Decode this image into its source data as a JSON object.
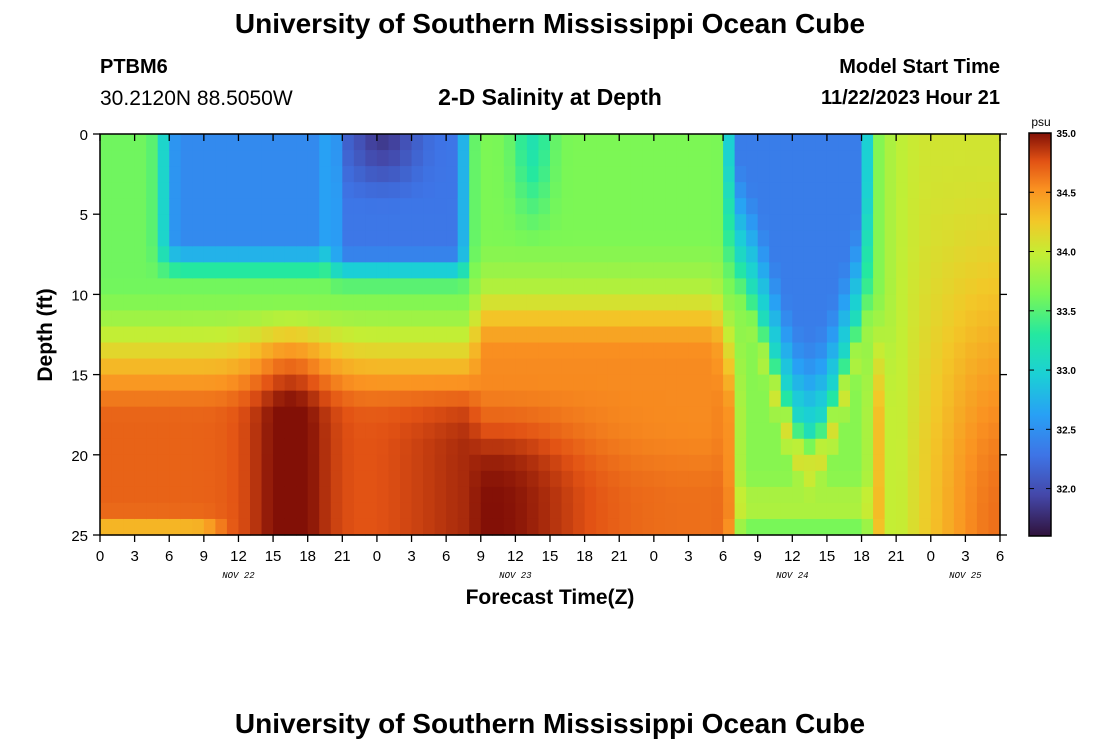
{
  "header": {
    "title": "University of Southern Mississippi Ocean Cube",
    "station_id": "PTBM6",
    "station_coords": "30.2120N  88.5050W",
    "subtitle": "2-D Salinity at Depth",
    "model_start_label": "Model Start Time",
    "model_start_value": "11/22/2023 Hour 21"
  },
  "footer": {
    "title": "University of Southern Mississippi Ocean Cube"
  },
  "chart_data": {
    "type": "heatmap",
    "title": "2-D Salinity at Depth",
    "xlabel": "Forecast Time(Z)",
    "ylabel": "Depth (ft)",
    "x_unit": "hours from 00Z Nov 22",
    "xlim": [
      0,
      78
    ],
    "ylim": [
      0,
      25
    ],
    "y_inverted": true,
    "x_ticks": [
      {
        "t": 0,
        "label": "0"
      },
      {
        "t": 3,
        "label": "3"
      },
      {
        "t": 6,
        "label": "6"
      },
      {
        "t": 9,
        "label": "9"
      },
      {
        "t": 12,
        "label": "12"
      },
      {
        "t": 15,
        "label": "15"
      },
      {
        "t": 18,
        "label": "18"
      },
      {
        "t": 21,
        "label": "21"
      },
      {
        "t": 24,
        "label": "0"
      },
      {
        "t": 27,
        "label": "3"
      },
      {
        "t": 30,
        "label": "6"
      },
      {
        "t": 33,
        "label": "9"
      },
      {
        "t": 36,
        "label": "12"
      },
      {
        "t": 39,
        "label": "15"
      },
      {
        "t": 42,
        "label": "18"
      },
      {
        "t": 45,
        "label": "21"
      },
      {
        "t": 48,
        "label": "0"
      },
      {
        "t": 51,
        "label": "3"
      },
      {
        "t": 54,
        "label": "6"
      },
      {
        "t": 57,
        "label": "9"
      },
      {
        "t": 60,
        "label": "12"
      },
      {
        "t": 63,
        "label": "15"
      },
      {
        "t": 66,
        "label": "18"
      },
      {
        "t": 69,
        "label": "21"
      },
      {
        "t": 72,
        "label": "0"
      },
      {
        "t": 75,
        "label": "3"
      },
      {
        "t": 78,
        "label": "6"
      }
    ],
    "date_labels": [
      {
        "t": 12,
        "label": "NOV 22"
      },
      {
        "t": 36,
        "label": "NOV 23"
      },
      {
        "t": 60,
        "label": "NOV 24"
      },
      {
        "t": 75,
        "label": "NOV 25"
      }
    ],
    "y_ticks": [
      0,
      5,
      10,
      15,
      20,
      25
    ],
    "colorbar": {
      "unit": "psu",
      "min": 31.6,
      "max": 35.0,
      "ticks": [
        32.0,
        32.5,
        33.0,
        33.5,
        34.0,
        34.5,
        35.0
      ],
      "tick_labels": [
        "32.0",
        "32.5",
        "33.0",
        "33.5",
        "34.0",
        "34.5",
        "35.0"
      ]
    },
    "grid": {
      "time_step_h": 1,
      "depth_step_ft": 1,
      "description": "Salinity (psu) estimated from the color field; rows = depth 0..24 ft, columns = hour 0..77",
      "features": [
        {
          "name": "surface fresh lens 1",
          "t_range": [
            6,
            20
          ],
          "depth_range": [
            0,
            8
          ],
          "salinity": 32.45
        },
        {
          "name": "surface fresh lens 2",
          "t_range": [
            20,
            33
          ],
          "depth_range": [
            0,
            8
          ],
          "salinity": 31.8
        },
        {
          "name": "surface fresh lens 3",
          "t_range": [
            55,
            67
          ],
          "depth_range": [
            0,
            20
          ],
          "salinity": 32.3
        },
        {
          "name": "salty core 1",
          "t_range": [
            14,
            19
          ],
          "depth_range": [
            12,
            25
          ],
          "salinity": 34.85
        },
        {
          "name": "salty core 2",
          "t_range": [
            30,
            44
          ],
          "depth_range": [
            17,
            25
          ],
          "salinity": 34.95
        },
        {
          "name": "late mixed",
          "t_range": [
            67,
            78
          ],
          "depth_range": [
            0,
            25
          ],
          "salinity": 34.0
        }
      ]
    }
  }
}
